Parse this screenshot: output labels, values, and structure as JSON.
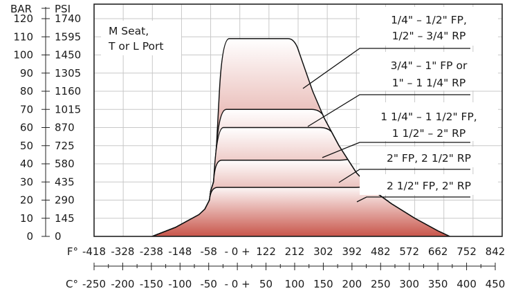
{
  "chart_data": {
    "type": "area",
    "title": "",
    "y_axis_left": {
      "unit": "BAR",
      "ticks": [
        0,
        10,
        20,
        30,
        40,
        50,
        60,
        70,
        80,
        90,
        100,
        110,
        120
      ],
      "range": [
        0,
        128
      ]
    },
    "y_axis_right": {
      "unit": "PSI",
      "ticks": [
        0,
        145,
        290,
        435,
        580,
        725,
        870,
        1015,
        1160,
        1305,
        1450,
        1595,
        1740
      ]
    },
    "x_axis_f": {
      "unit": "F°",
      "ticks": [
        "-418",
        "-328",
        "-238",
        "-148",
        "-58",
        "- 0 +",
        "122",
        "212",
        "302",
        "392",
        "482",
        "572",
        "662",
        "752",
        "842"
      ]
    },
    "x_axis_c": {
      "unit": "C°",
      "ticks": [
        "-250",
        "-200",
        "-150",
        "-100",
        "-50",
        "- 0 +",
        "50",
        "100",
        "150",
        "200",
        "250",
        "300",
        "350",
        "400",
        "450"
      ],
      "range": [
        -250,
        450
      ]
    },
    "grid": true,
    "corner_label": [
      "M Seat,",
      "T or L Port"
    ],
    "envelope": [
      [
        -150,
        0
      ],
      [
        -110,
        5
      ],
      [
        -70,
        12
      ],
      [
        -60,
        15
      ],
      [
        -52,
        20
      ],
      [
        -50,
        25
      ],
      [
        -45,
        30
      ],
      [
        -40,
        50
      ],
      [
        -35,
        80
      ],
      [
        -30,
        108
      ],
      [
        -25,
        109
      ],
      [
        85,
        109
      ],
      [
        95,
        108
      ],
      [
        100,
        103
      ],
      [
        125,
        80
      ],
      [
        145,
        65
      ],
      [
        170,
        50
      ],
      [
        200,
        35
      ],
      [
        230,
        25
      ],
      [
        260,
        18
      ],
      [
        300,
        10
      ],
      [
        340,
        3
      ],
      [
        360,
        0
      ]
    ],
    "series": [
      {
        "label": [
          "1/4\" – 1/2\" FP,",
          "1/2\" – 3/4\" RP"
        ],
        "plateau_bar": 109,
        "shoulder_c": [
          -30,
          95
        ]
      },
      {
        "label": [
          "3/4\" – 1\" FP or",
          "1\" – 1 1/4\" RP"
        ],
        "plateau_bar": 70,
        "shoulder_c": [
          -35,
          135
        ]
      },
      {
        "label": [
          "1 1/4\" – 1 1/2\" FP,",
          "1 1/2\" – 2\" RP"
        ],
        "plateau_bar": 60,
        "shoulder_c": [
          -40,
          150
        ]
      },
      {
        "label": [
          "2\" FP, 2 1/2\" RP"
        ],
        "plateau_bar": 42,
        "shoulder_c": [
          -43,
          178
        ]
      },
      {
        "label": [
          "2 1/2\" FP, 2\" RP"
        ],
        "plateau_bar": 27,
        "shoulder_c": [
          -50,
          212
        ]
      }
    ]
  },
  "theme": {
    "fill_top": "#ffffff",
    "fill_bottom": "#c8554a",
    "grid_color": "#c8c8c8",
    "frame_color": "#222222"
  }
}
